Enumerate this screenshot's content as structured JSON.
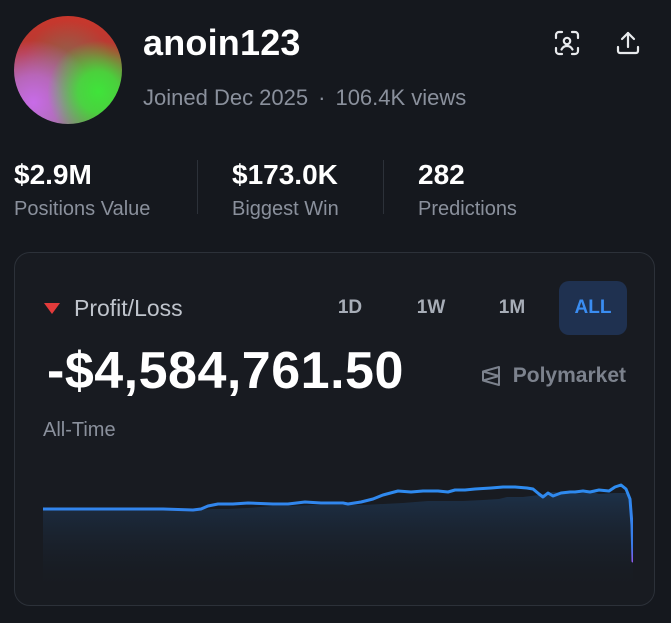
{
  "profile": {
    "username": "anoin123",
    "joined": "Joined Dec 2025",
    "separator": "·",
    "views": "106.4K views"
  },
  "actions": {
    "scan_icon": "scan-person-icon",
    "share_icon": "share-upload-icon"
  },
  "stats": [
    {
      "value": "$2.9M",
      "label": "Positions Value"
    },
    {
      "value": "$173.0K",
      "label": "Biggest Win"
    },
    {
      "value": "282",
      "label": "Predictions"
    }
  ],
  "profit_loss": {
    "label": "Profit/Loss",
    "value": "-$4,584,761.50",
    "range_label": "All-Time",
    "brand": "Polymarket",
    "tabs": [
      "1D",
      "1W",
      "1M",
      "ALL"
    ],
    "active_tab": "ALL"
  },
  "colors": {
    "line": "#2d8cf0",
    "loss": "#e23b3b",
    "accent": "#3a8df2"
  }
}
